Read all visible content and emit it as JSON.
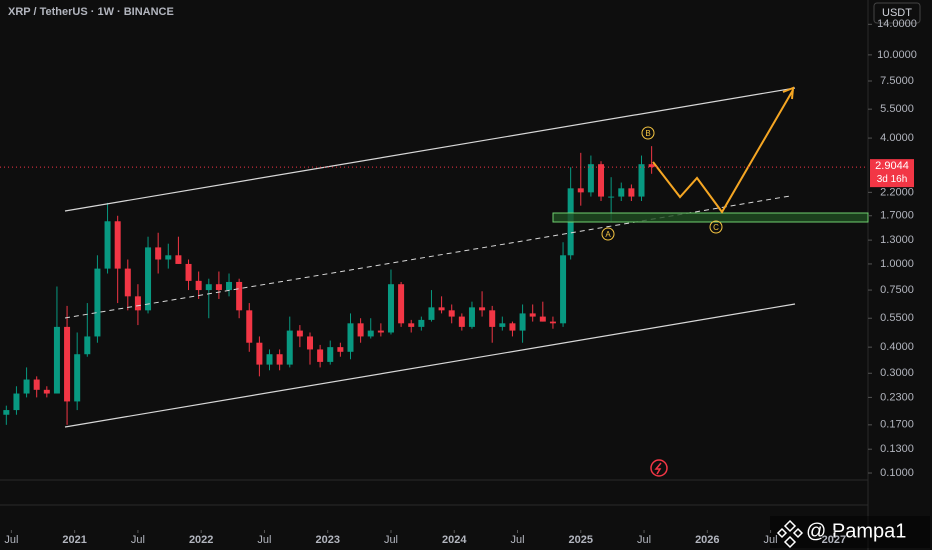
{
  "chart_data": {
    "type": "candlestick",
    "title": "XRP / TetherUS · 1W · BINANCE",
    "currency": "USDT",
    "last_price": 2.9044,
    "countdown": "3d 16h",
    "log_scale": true,
    "up_color": "#089981",
    "down_color": "#f23645",
    "wave_labels": [
      "A",
      "B",
      "C"
    ],
    "watermark": "@ Pampa1",
    "x": [
      2020.46,
      2020.54,
      2020.62,
      2020.7,
      2020.78,
      2020.86,
      2020.94,
      2021.02,
      2021.1,
      2021.18,
      2021.26,
      2021.34,
      2021.42,
      2021.5,
      2021.58,
      2021.66,
      2021.74,
      2021.82,
      2021.9,
      2021.98,
      2022.06,
      2022.14,
      2022.22,
      2022.3,
      2022.38,
      2022.46,
      2022.54,
      2022.62,
      2022.7,
      2022.78,
      2022.86,
      2022.94,
      2023.02,
      2023.1,
      2023.18,
      2023.26,
      2023.34,
      2023.42,
      2023.5,
      2023.58,
      2023.66,
      2023.74,
      2023.82,
      2023.9,
      2023.98,
      2024.06,
      2024.14,
      2024.22,
      2024.3,
      2024.38,
      2024.46,
      2024.54,
      2024.62,
      2024.7,
      2024.78,
      2024.86,
      2024.92,
      2025.0,
      2025.08,
      2025.16,
      2025.24,
      2025.32,
      2025.4,
      2025.48,
      2025.56
    ],
    "open": [
      0.19,
      0.2,
      0.24,
      0.28,
      0.25,
      0.24,
      0.5,
      0.22,
      0.37,
      0.45,
      0.95,
      1.6,
      0.95,
      0.7,
      0.6,
      1.2,
      1.05,
      1.1,
      1.0,
      0.83,
      0.75,
      0.8,
      0.75,
      0.82,
      0.6,
      0.42,
      0.33,
      0.37,
      0.33,
      0.48,
      0.45,
      0.39,
      0.34,
      0.4,
      0.38,
      0.52,
      0.45,
      0.48,
      0.47,
      0.8,
      0.52,
      0.5,
      0.54,
      0.62,
      0.6,
      0.56,
      0.5,
      0.62,
      0.6,
      0.5,
      0.52,
      0.48,
      0.58,
      0.56,
      0.53,
      0.52,
      1.1,
      2.3,
      2.2,
      3.0,
      2.1,
      2.1,
      2.3,
      2.1,
      3.0
    ],
    "high": [
      0.21,
      0.26,
      0.32,
      0.29,
      0.26,
      0.78,
      0.63,
      0.47,
      0.65,
      1.1,
      1.96,
      1.7,
      1.05,
      0.8,
      1.35,
      1.41,
      1.25,
      1.35,
      1.05,
      0.92,
      0.85,
      0.92,
      0.9,
      0.85,
      0.65,
      0.45,
      0.39,
      0.39,
      0.56,
      0.51,
      0.47,
      0.41,
      0.43,
      0.42,
      0.58,
      0.55,
      0.55,
      0.52,
      0.94,
      0.82,
      0.54,
      0.56,
      0.75,
      0.7,
      0.64,
      0.58,
      0.66,
      0.74,
      0.63,
      0.56,
      0.53,
      0.64,
      0.64,
      0.66,
      0.56,
      1.27,
      2.9,
      3.4,
      3.3,
      3.1,
      2.6,
      2.45,
      2.4,
      3.3,
      3.66
    ],
    "low": [
      0.17,
      0.19,
      0.23,
      0.23,
      0.23,
      0.24,
      0.17,
      0.2,
      0.36,
      0.42,
      0.9,
      0.65,
      0.6,
      0.51,
      0.58,
      0.9,
      0.95,
      1.0,
      0.75,
      0.68,
      0.55,
      0.68,
      0.7,
      0.55,
      0.38,
      0.29,
      0.31,
      0.31,
      0.32,
      0.4,
      0.33,
      0.32,
      0.33,
      0.36,
      0.35,
      0.42,
      0.44,
      0.45,
      0.46,
      0.5,
      0.47,
      0.48,
      0.53,
      0.58,
      0.52,
      0.48,
      0.49,
      0.56,
      0.42,
      0.48,
      0.45,
      0.42,
      0.53,
      0.53,
      0.49,
      0.5,
      1.05,
      1.9,
      2.1,
      2.0,
      1.6,
      2.0,
      2.0,
      2.0,
      2.7
    ],
    "close": [
      0.2,
      0.24,
      0.28,
      0.25,
      0.24,
      0.5,
      0.22,
      0.37,
      0.45,
      0.95,
      1.6,
      0.95,
      0.7,
      0.6,
      1.2,
      1.05,
      1.1,
      1.0,
      0.83,
      0.75,
      0.8,
      0.75,
      0.82,
      0.6,
      0.42,
      0.33,
      0.37,
      0.33,
      0.48,
      0.45,
      0.39,
      0.34,
      0.4,
      0.38,
      0.52,
      0.45,
      0.48,
      0.47,
      0.8,
      0.52,
      0.5,
      0.54,
      0.62,
      0.6,
      0.56,
      0.5,
      0.62,
      0.6,
      0.5,
      0.52,
      0.48,
      0.58,
      0.56,
      0.53,
      0.52,
      1.1,
      2.3,
      2.2,
      3.0,
      2.1,
      2.1,
      2.3,
      2.1,
      3.0,
      2.9044
    ],
    "xlim": [
      2020.41,
      2027.27
    ],
    "xticks": [
      {
        "value": 2020.5,
        "label": "Jul"
      },
      2021,
      {
        "value": 2021.5,
        "label": "Jul"
      },
      2022,
      {
        "value": 2022.5,
        "label": "Jul"
      },
      2023,
      {
        "value": 2023.5,
        "label": "Jul"
      },
      2024,
      {
        "value": 2024.5,
        "label": "Jul"
      },
      2025,
      {
        "value": 2025.5,
        "label": "Jul"
      },
      2026,
      {
        "value": 2026.5,
        "label": "Jul"
      },
      2027
    ],
    "ylim": [
      0.0926,
      18.3
    ],
    "yticks": [
      {
        "value": 14,
        "label": "14.0000"
      },
      {
        "value": 10,
        "label": "10.0000"
      },
      {
        "value": 7.5,
        "label": "7.5000"
      },
      {
        "value": 5.5,
        "label": "5.5000"
      },
      {
        "value": 4,
        "label": "4.0000"
      },
      {
        "value": 2.2,
        "label": "2.2000"
      },
      {
        "value": 1.7,
        "label": "1.7000"
      },
      {
        "value": 1.3,
        "label": "1.3000"
      },
      {
        "value": 1,
        "label": "1.0000"
      },
      {
        "value": 0.75,
        "label": "0.7500"
      },
      {
        "value": 0.55,
        "label": "0.5500"
      },
      {
        "value": 0.4,
        "label": "0.4000"
      },
      {
        "value": 0.3,
        "label": "0.3000"
      },
      {
        "value": 0.23,
        "label": "0.2300"
      },
      {
        "value": 0.17,
        "label": "0.1700"
      },
      {
        "value": 0.13,
        "label": "0.1300"
      },
      {
        "value": 0.1,
        "label": "0.1000"
      }
    ]
  }
}
